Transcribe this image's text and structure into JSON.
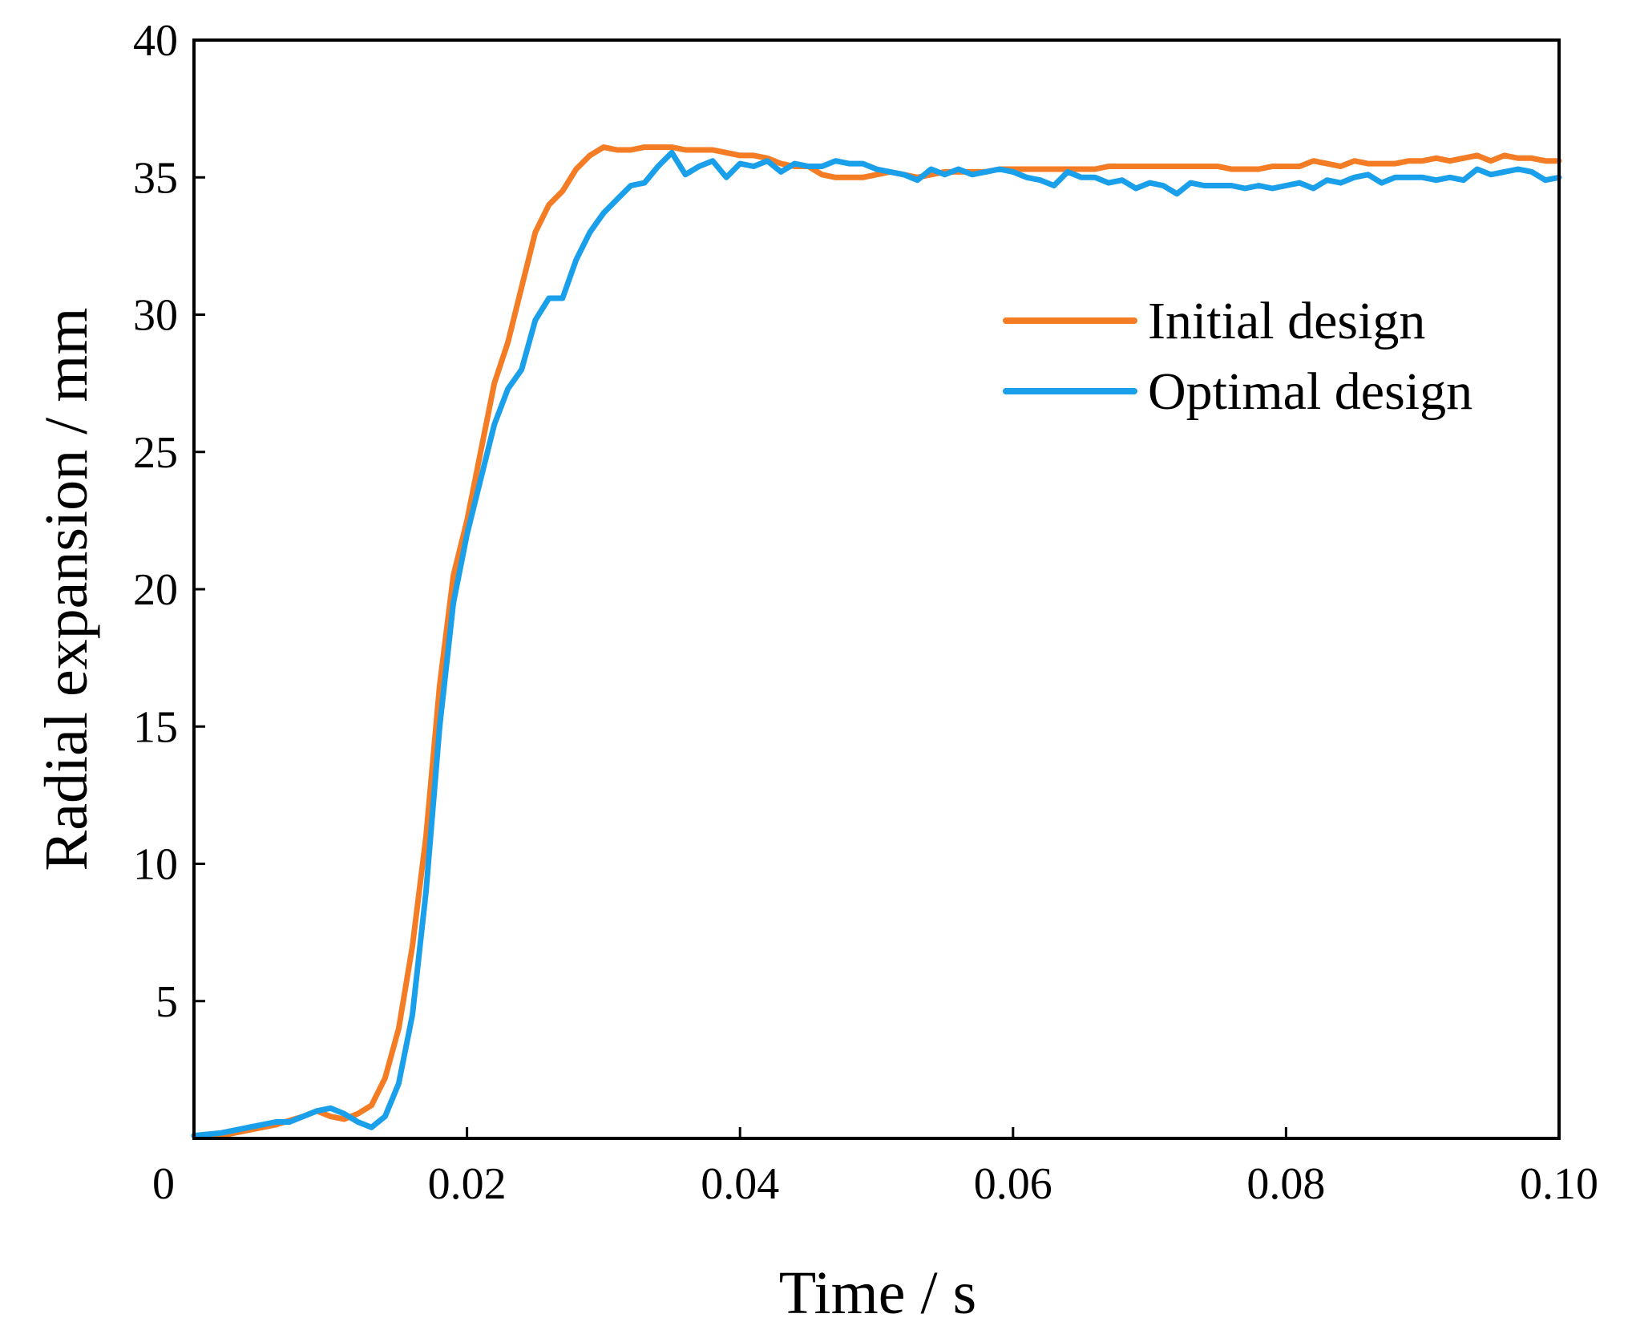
{
  "chart_data": {
    "type": "line",
    "title": "",
    "xlabel": "Time / s",
    "ylabel": "Radial expansion / mm",
    "xlim": [
      0,
      0.1
    ],
    "ylim": [
      0,
      40
    ],
    "x_origin_label": "0",
    "xticks": [
      {
        "value": 0.02,
        "label": "0.02"
      },
      {
        "value": 0.04,
        "label": "0.04"
      },
      {
        "value": 0.06,
        "label": "0.06"
      },
      {
        "value": 0.08,
        "label": "0.08"
      },
      {
        "value": 0.1,
        "label": "0.10"
      }
    ],
    "yticks": [
      {
        "value": 5,
        "label": "5"
      },
      {
        "value": 10,
        "label": "10"
      },
      {
        "value": 15,
        "label": "15"
      },
      {
        "value": 20,
        "label": "20"
      },
      {
        "value": 25,
        "label": "25"
      },
      {
        "value": 30,
        "label": "30"
      },
      {
        "value": 35,
        "label": "35"
      },
      {
        "value": 40,
        "label": "40"
      }
    ],
    "grid": false,
    "legend_position": "right-upper",
    "series": [
      {
        "name": "Initial design",
        "color": "#F47C25",
        "points": [
          [
            0,
            0.1
          ],
          [
            0.002,
            0.1
          ],
          [
            0.004,
            0.3
          ],
          [
            0.006,
            0.5
          ],
          [
            0.008,
            0.8
          ],
          [
            0.009,
            1.0
          ],
          [
            0.01,
            0.8
          ],
          [
            0.011,
            0.7
          ],
          [
            0.012,
            0.9
          ],
          [
            0.013,
            1.2
          ],
          [
            0.014,
            2.2
          ],
          [
            0.015,
            4.0
          ],
          [
            0.016,
            7.0
          ],
          [
            0.017,
            11.0
          ],
          [
            0.018,
            16.5
          ],
          [
            0.019,
            20.5
          ],
          [
            0.02,
            22.5
          ],
          [
            0.021,
            25.0
          ],
          [
            0.022,
            27.5
          ],
          [
            0.023,
            29.0
          ],
          [
            0.024,
            31.0
          ],
          [
            0.025,
            33.0
          ],
          [
            0.026,
            34.0
          ],
          [
            0.027,
            34.5
          ],
          [
            0.028,
            35.3
          ],
          [
            0.029,
            35.8
          ],
          [
            0.03,
            36.1
          ],
          [
            0.031,
            36.0
          ],
          [
            0.032,
            36.0
          ],
          [
            0.033,
            36.1
          ],
          [
            0.034,
            36.1
          ],
          [
            0.035,
            36.1
          ],
          [
            0.036,
            36.0
          ],
          [
            0.037,
            36.0
          ],
          [
            0.038,
            36.0
          ],
          [
            0.039,
            35.9
          ],
          [
            0.04,
            35.8
          ],
          [
            0.041,
            35.8
          ],
          [
            0.042,
            35.7
          ],
          [
            0.043,
            35.5
          ],
          [
            0.044,
            35.4
          ],
          [
            0.045,
            35.4
          ],
          [
            0.046,
            35.1
          ],
          [
            0.047,
            35.0
          ],
          [
            0.048,
            35.0
          ],
          [
            0.049,
            35.0
          ],
          [
            0.05,
            35.1
          ],
          [
            0.051,
            35.2
          ],
          [
            0.052,
            35.1
          ],
          [
            0.053,
            35.0
          ],
          [
            0.054,
            35.1
          ],
          [
            0.055,
            35.2
          ],
          [
            0.056,
            35.2
          ],
          [
            0.057,
            35.2
          ],
          [
            0.058,
            35.2
          ],
          [
            0.059,
            35.3
          ],
          [
            0.06,
            35.3
          ],
          [
            0.061,
            35.3
          ],
          [
            0.062,
            35.3
          ],
          [
            0.063,
            35.3
          ],
          [
            0.064,
            35.3
          ],
          [
            0.065,
            35.3
          ],
          [
            0.066,
            35.3
          ],
          [
            0.067,
            35.4
          ],
          [
            0.068,
            35.4
          ],
          [
            0.069,
            35.4
          ],
          [
            0.07,
            35.4
          ],
          [
            0.071,
            35.4
          ],
          [
            0.072,
            35.4
          ],
          [
            0.073,
            35.4
          ],
          [
            0.074,
            35.4
          ],
          [
            0.075,
            35.4
          ],
          [
            0.076,
            35.3
          ],
          [
            0.077,
            35.3
          ],
          [
            0.078,
            35.3
          ],
          [
            0.079,
            35.4
          ],
          [
            0.08,
            35.4
          ],
          [
            0.081,
            35.4
          ],
          [
            0.082,
            35.6
          ],
          [
            0.083,
            35.5
          ],
          [
            0.084,
            35.4
          ],
          [
            0.085,
            35.6
          ],
          [
            0.086,
            35.5
          ],
          [
            0.087,
            35.5
          ],
          [
            0.088,
            35.5
          ],
          [
            0.089,
            35.6
          ],
          [
            0.09,
            35.6
          ],
          [
            0.091,
            35.7
          ],
          [
            0.092,
            35.6
          ],
          [
            0.093,
            35.7
          ],
          [
            0.094,
            35.8
          ],
          [
            0.095,
            35.6
          ],
          [
            0.096,
            35.8
          ],
          [
            0.097,
            35.7
          ],
          [
            0.098,
            35.7
          ],
          [
            0.099,
            35.6
          ],
          [
            0.1,
            35.6
          ]
        ]
      },
      {
        "name": "Optimal design",
        "color": "#1A9FEA",
        "points": [
          [
            0,
            0.1
          ],
          [
            0.002,
            0.2
          ],
          [
            0.004,
            0.4
          ],
          [
            0.005,
            0.5
          ],
          [
            0.006,
            0.6
          ],
          [
            0.007,
            0.6
          ],
          [
            0.008,
            0.8
          ],
          [
            0.009,
            1.0
          ],
          [
            0.01,
            1.1
          ],
          [
            0.011,
            0.9
          ],
          [
            0.012,
            0.6
          ],
          [
            0.013,
            0.4
          ],
          [
            0.014,
            0.8
          ],
          [
            0.015,
            2.0
          ],
          [
            0.016,
            4.5
          ],
          [
            0.017,
            9.0
          ],
          [
            0.018,
            15.0
          ],
          [
            0.019,
            19.5
          ],
          [
            0.02,
            22.0
          ],
          [
            0.021,
            24.0
          ],
          [
            0.022,
            26.0
          ],
          [
            0.023,
            27.3
          ],
          [
            0.024,
            28.0
          ],
          [
            0.025,
            29.8
          ],
          [
            0.026,
            30.6
          ],
          [
            0.027,
            30.6
          ],
          [
            0.028,
            32.0
          ],
          [
            0.029,
            33.0
          ],
          [
            0.03,
            33.7
          ],
          [
            0.031,
            34.2
          ],
          [
            0.032,
            34.7
          ],
          [
            0.033,
            34.8
          ],
          [
            0.034,
            35.4
          ],
          [
            0.035,
            35.9
          ],
          [
            0.036,
            35.1
          ],
          [
            0.037,
            35.4
          ],
          [
            0.038,
            35.6
          ],
          [
            0.039,
            35.0
          ],
          [
            0.04,
            35.5
          ],
          [
            0.041,
            35.4
          ],
          [
            0.042,
            35.6
          ],
          [
            0.043,
            35.2
          ],
          [
            0.044,
            35.5
          ],
          [
            0.045,
            35.4
          ],
          [
            0.046,
            35.4
          ],
          [
            0.047,
            35.6
          ],
          [
            0.048,
            35.5
          ],
          [
            0.049,
            35.5
          ],
          [
            0.05,
            35.3
          ],
          [
            0.051,
            35.2
          ],
          [
            0.052,
            35.1
          ],
          [
            0.053,
            34.9
          ],
          [
            0.054,
            35.3
          ],
          [
            0.055,
            35.1
          ],
          [
            0.056,
            35.3
          ],
          [
            0.057,
            35.1
          ],
          [
            0.058,
            35.2
          ],
          [
            0.059,
            35.3
          ],
          [
            0.06,
            35.2
          ],
          [
            0.061,
            35.0
          ],
          [
            0.062,
            34.9
          ],
          [
            0.063,
            34.7
          ],
          [
            0.064,
            35.2
          ],
          [
            0.065,
            35.0
          ],
          [
            0.066,
            35.0
          ],
          [
            0.067,
            34.8
          ],
          [
            0.068,
            34.9
          ],
          [
            0.069,
            34.6
          ],
          [
            0.07,
            34.8
          ],
          [
            0.071,
            34.7
          ],
          [
            0.072,
            34.4
          ],
          [
            0.073,
            34.8
          ],
          [
            0.074,
            34.7
          ],
          [
            0.075,
            34.7
          ],
          [
            0.076,
            34.7
          ],
          [
            0.077,
            34.6
          ],
          [
            0.078,
            34.7
          ],
          [
            0.079,
            34.6
          ],
          [
            0.08,
            34.7
          ],
          [
            0.081,
            34.8
          ],
          [
            0.082,
            34.6
          ],
          [
            0.083,
            34.9
          ],
          [
            0.084,
            34.8
          ],
          [
            0.085,
            35.0
          ],
          [
            0.086,
            35.1
          ],
          [
            0.087,
            34.8
          ],
          [
            0.088,
            35.0
          ],
          [
            0.089,
            35.0
          ],
          [
            0.09,
            35.0
          ],
          [
            0.091,
            34.9
          ],
          [
            0.092,
            35.0
          ],
          [
            0.093,
            34.9
          ],
          [
            0.094,
            35.3
          ],
          [
            0.095,
            35.1
          ],
          [
            0.096,
            35.2
          ],
          [
            0.097,
            35.3
          ],
          [
            0.098,
            35.2
          ],
          [
            0.099,
            34.9
          ],
          [
            0.1,
            35.0
          ]
        ]
      }
    ]
  }
}
